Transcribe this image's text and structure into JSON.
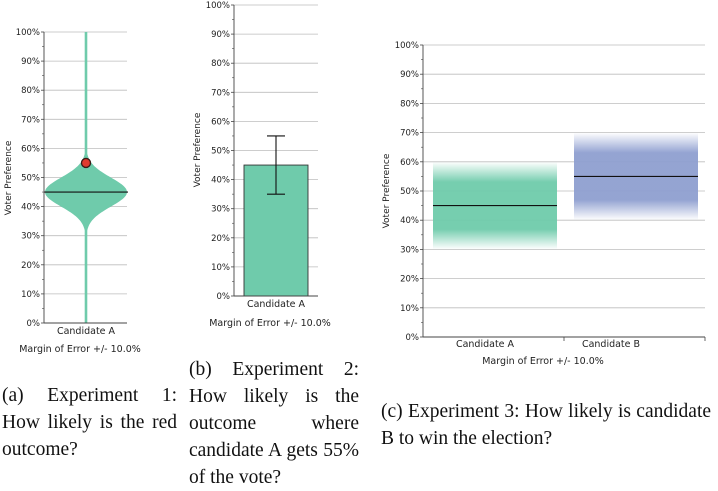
{
  "chart_data": [
    {
      "id": "a",
      "type": "violin",
      "caption_label": "(a)",
      "caption_text": "Experiment 1: How likely is the red outcome?",
      "ylabel": "Voter Preference",
      "xlabel": "Margin of Error +/- 10.0%",
      "category": "Candidate A",
      "ylim": [
        0,
        100
      ],
      "yticks": [
        "0%",
        "10%",
        "20%",
        "30%",
        "40%",
        "50%",
        "60%",
        "70%",
        "80%",
        "90%",
        "100%"
      ],
      "mean": 45,
      "margin_of_error": 10,
      "red_outcome": 55,
      "fill_color": "#6fcbab",
      "marker_color": "#e03a2e"
    },
    {
      "id": "b",
      "type": "bar",
      "caption_label": "(b)",
      "caption_text": "Experiment 2: How likely is the outcome where candidate A gets 55% of the vote?",
      "ylabel": "Voter Preference",
      "xlabel": "Margin of Error +/- 10.0%",
      "category": "Candidate A",
      "ylim": [
        0,
        100
      ],
      "yticks": [
        "0%",
        "10%",
        "20%",
        "30%",
        "40%",
        "50%",
        "60%",
        "70%",
        "80%",
        "90%",
        "100%"
      ],
      "value": 45,
      "error_low": 35,
      "error_high": 55,
      "fill_color": "#6fcbab"
    },
    {
      "id": "c",
      "type": "gradient_interval",
      "caption_label": "(c)",
      "caption_text": "Experiment 3: How likely is candidate B to win the election?",
      "ylabel": "Voter Preference",
      "xlabel": "Margin of Error +/- 10.0%",
      "categories": [
        "Candidate A",
        "Candidate B"
      ],
      "ylim": [
        0,
        100
      ],
      "yticks": [
        "0%",
        "10%",
        "20%",
        "30%",
        "40%",
        "50%",
        "60%",
        "70%",
        "80%",
        "90%",
        "100%"
      ],
      "values": [
        45,
        55
      ],
      "margin_of_error": 10,
      "colors": [
        "#6fcbab",
        "#8f9fd0"
      ]
    }
  ]
}
